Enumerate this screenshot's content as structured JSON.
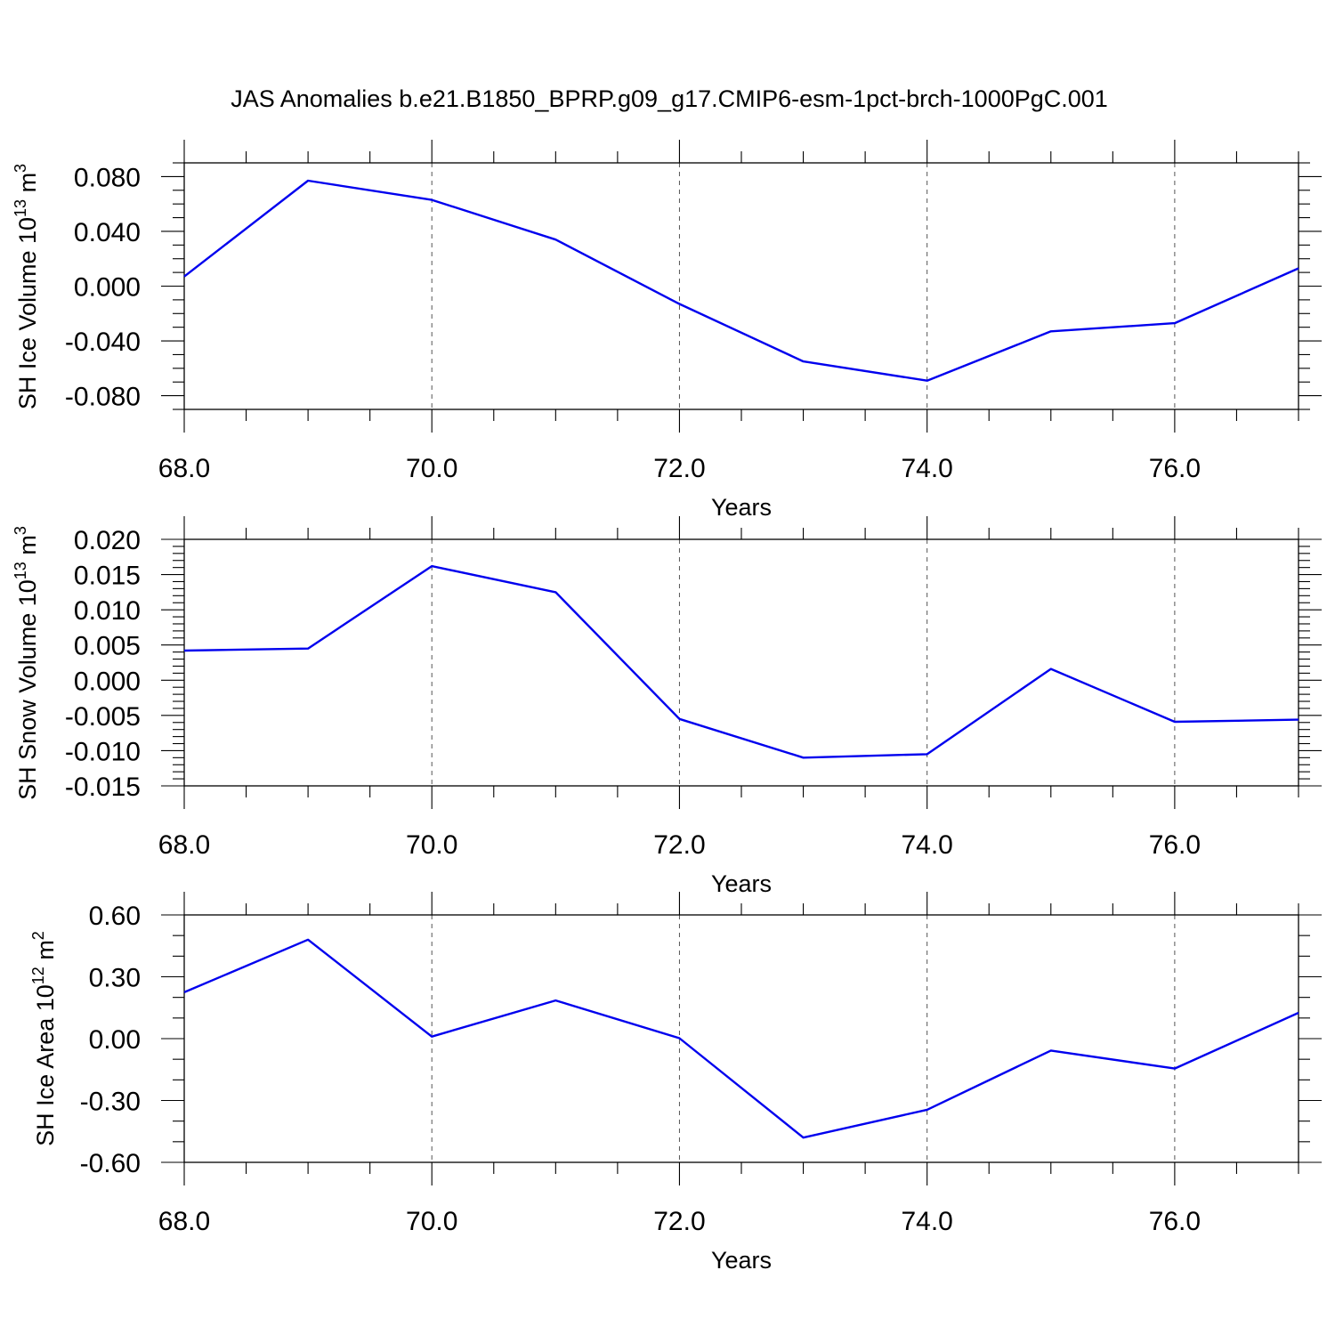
{
  "title": "JAS Anomalies b.e21.B1850_BPRP.g09_g17.CMIP6-esm-1pct-brch-1000PgC.001",
  "line_color": "#0000ee",
  "chart_data": [
    {
      "type": "line",
      "ylabel": "SH Ice Volume 10",
      "ylabel_exp": "13",
      "ylabel_unit": " m",
      "ylabel_unit_exp": "3",
      "xlabel": "Years",
      "xlim": [
        68,
        77
      ],
      "ylim": [
        -0.09,
        0.09
      ],
      "x_ticks": [
        68,
        70,
        72,
        74,
        76
      ],
      "x_tick_labels": [
        "68.0",
        "70.0",
        "72.0",
        "74.0",
        "76.0"
      ],
      "y_ticks": [
        -0.08,
        -0.04,
        0,
        0.04,
        0.08
      ],
      "y_tick_labels": [
        "-0.080",
        "-0.040",
        "0.000",
        "0.040",
        "0.080"
      ],
      "y_minor_step": 0.01,
      "grid": "x-dashed",
      "series": [
        {
          "x": [
            68,
            69,
            70,
            71,
            72,
            73,
            74,
            75,
            76,
            77
          ],
          "values": [
            0.007,
            0.077,
            0.063,
            0.034,
            -0.013,
            -0.055,
            -0.069,
            -0.033,
            -0.027,
            0.013
          ]
        }
      ]
    },
    {
      "type": "line",
      "ylabel": "SH Snow Volume 10",
      "ylabel_exp": "13",
      "ylabel_unit": " m",
      "ylabel_unit_exp": "3",
      "xlabel": "Years",
      "xlim": [
        68,
        77
      ],
      "ylim": [
        -0.015,
        0.02
      ],
      "x_ticks": [
        68,
        70,
        72,
        74,
        76
      ],
      "x_tick_labels": [
        "68.0",
        "70.0",
        "72.0",
        "74.0",
        "76.0"
      ],
      "y_ticks": [
        -0.015,
        -0.01,
        -0.005,
        0,
        0.005,
        0.01,
        0.015,
        0.02
      ],
      "y_tick_labels": [
        "-0.015",
        "-0.010",
        "-0.005",
        "0.000",
        "0.005",
        "0.010",
        "0.015",
        "0.020"
      ],
      "y_minor_step": 0.001,
      "grid": "x-dashed",
      "series": [
        {
          "x": [
            68,
            69,
            70,
            71,
            72,
            73,
            74,
            75,
            76,
            77
          ],
          "values": [
            0.0042,
            0.0045,
            0.0162,
            0.0125,
            -0.0055,
            -0.011,
            -0.0105,
            0.0016,
            -0.0059,
            -0.0056
          ]
        }
      ]
    },
    {
      "type": "line",
      "ylabel": "SH Ice Area 10",
      "ylabel_exp": "12",
      "ylabel_unit": " m",
      "ylabel_unit_exp": "2",
      "xlabel": "Years",
      "xlim": [
        68,
        77
      ],
      "ylim": [
        -0.6,
        0.6
      ],
      "x_ticks": [
        68,
        70,
        72,
        74,
        76
      ],
      "x_tick_labels": [
        "68.0",
        "70.0",
        "72.0",
        "74.0",
        "76.0"
      ],
      "y_ticks": [
        -0.6,
        -0.3,
        0,
        0.3,
        0.6
      ],
      "y_tick_labels": [
        "-0.60",
        "-0.30",
        "0.00",
        "0.30",
        "0.60"
      ],
      "y_minor_step": 0.1,
      "grid": "x-dashed",
      "series": [
        {
          "x": [
            68,
            69,
            70,
            71,
            72,
            73,
            74,
            75,
            76,
            77
          ],
          "values": [
            0.225,
            0.48,
            0.01,
            0.185,
            0.002,
            -0.48,
            -0.345,
            -0.058,
            -0.145,
            0.125
          ]
        }
      ]
    }
  ]
}
